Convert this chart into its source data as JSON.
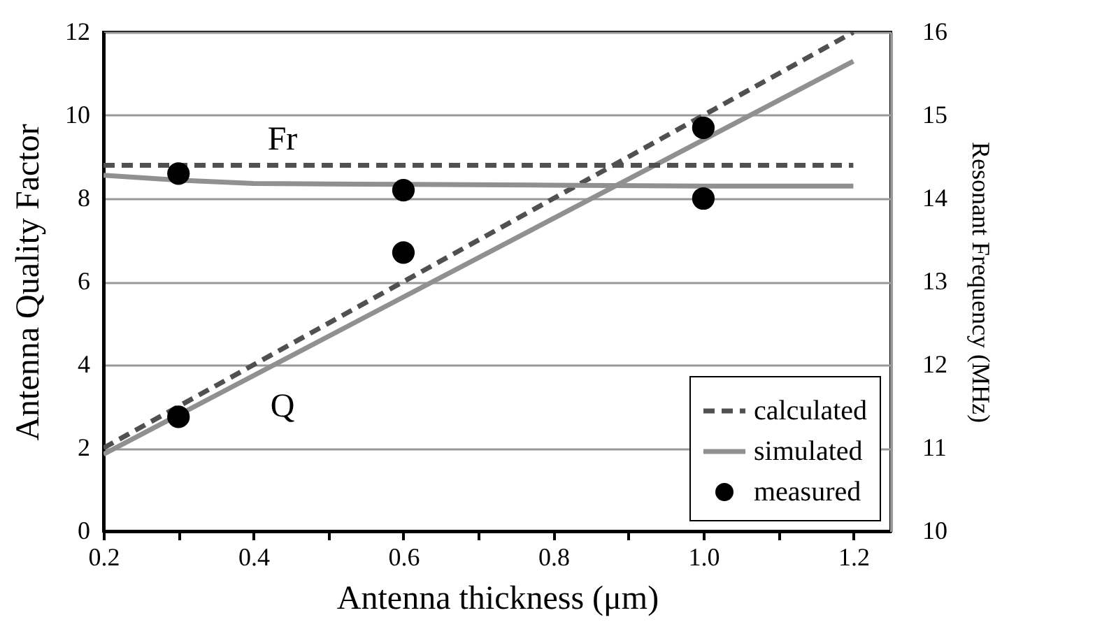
{
  "chart_data": {
    "type": "line",
    "xlabel": "Antenna thickness (μm)",
    "ylabel": "Antenna Quality Factor",
    "y2label": "Resonant Frequency (MHz)",
    "xlim": [
      0.2,
      1.25
    ],
    "xticks": [
      0.2,
      {
        "value": 0.3,
        "label": null
      },
      0.4,
      {
        "value": 0.5,
        "label": null
      },
      0.6,
      {
        "value": 0.7,
        "label": null
      },
      0.8,
      {
        "value": 0.9,
        "label": null
      },
      {
        "value": 1,
        "label": "1.0"
      },
      {
        "value": 1.1,
        "label": null
      },
      1.2
    ],
    "ylim": [
      0,
      12
    ],
    "yticks": [
      0,
      2,
      4,
      6,
      8,
      10,
      12
    ],
    "y2lim": [
      10,
      16
    ],
    "y2ticks": [
      10,
      11,
      12,
      13,
      14,
      15,
      16
    ],
    "grid": "y",
    "legend": "bottom right",
    "series": [
      {
        "name": "calculated",
        "axis": "y",
        "color": "#505050",
        "line_style": "dashed",
        "x": [
          0.2,
          1.2
        ],
        "values": [
          2.0,
          12.0
        ]
      },
      {
        "name": "simulated",
        "axis": "y",
        "color": "#909090",
        "line_style": "solid",
        "x": [
          0.2,
          1.2
        ],
        "values": [
          1.85,
          11.3
        ]
      },
      {
        "name": "measured",
        "type": "scatter",
        "axis": "y",
        "color": "#000000",
        "marker": "circle",
        "x": [
          0.3,
          0.6,
          1.0
        ],
        "values": [
          2.75,
          6.7,
          9.7
        ]
      },
      {
        "axis": "y2",
        "color": "#505050",
        "line_style": "dashed",
        "x": [
          0.2,
          1.2
        ],
        "values": [
          14.4,
          14.4
        ]
      },
      {
        "axis": "y2",
        "color": "#909090",
        "line_style": "solid",
        "x": [
          0.2,
          0.3,
          0.4,
          0.6,
          0.8,
          1.0,
          1.2
        ],
        "values": [
          14.28,
          14.22,
          14.18,
          14.17,
          14.16,
          14.15,
          14.15
        ]
      },
      {
        "type": "scatter",
        "axis": "y2",
        "color": "#000000",
        "marker": "circle",
        "x": [
          0.3,
          0.6,
          1.0
        ],
        "values": [
          14.3,
          14.1,
          14.0
        ]
      }
    ],
    "annotations": [
      "Fr",
      "Q"
    ]
  }
}
